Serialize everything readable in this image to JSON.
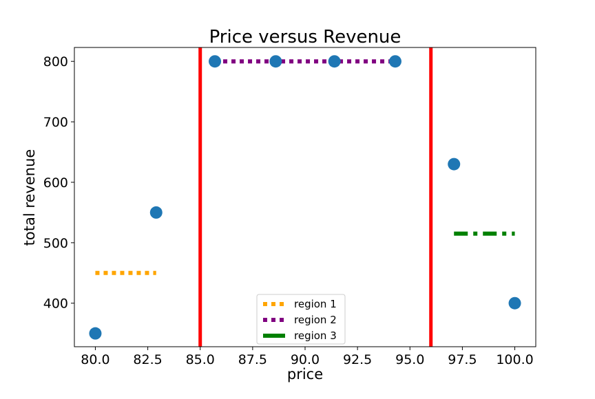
{
  "chart_data": {
    "type": "scatter",
    "title": "Price versus Revenue",
    "xlabel": "price",
    "ylabel": "total revenue",
    "xlim": [
      79.0,
      101.0
    ],
    "ylim": [
      328,
      823
    ],
    "x_ticks": [
      "80.0",
      "82.5",
      "85.0",
      "87.5",
      "90.0",
      "92.5",
      "95.0",
      "97.5",
      "100.0"
    ],
    "x_tick_values": [
      80.0,
      82.5,
      85.0,
      87.5,
      90.0,
      92.5,
      95.0,
      97.5,
      100.0
    ],
    "y_ticks": [
      "400",
      "500",
      "600",
      "700",
      "800"
    ],
    "y_tick_values": [
      400,
      500,
      600,
      700,
      800
    ],
    "grid": false,
    "legend_position": "lower-center",
    "points": {
      "color": "#1f77b4",
      "x": [
        80.0,
        82.9,
        85.7,
        88.6,
        91.4,
        94.3,
        97.1,
        100.0
      ],
      "y": [
        350,
        550,
        800,
        800,
        800,
        800,
        630,
        400
      ]
    },
    "vlines": [
      {
        "x": 85.0,
        "color": "#ff0000"
      },
      {
        "x": 96.0,
        "color": "#ff0000"
      }
    ],
    "series": [
      {
        "name": "region 1",
        "color": "#ffa500",
        "style": "dotted",
        "x": [
          80.0,
          82.9
        ],
        "y": [
          450,
          450
        ]
      },
      {
        "name": "region 2",
        "color": "#800080",
        "style": "dotted",
        "x": [
          85.7,
          94.3
        ],
        "y": [
          800,
          800
        ]
      },
      {
        "name": "region 3",
        "color": "#008000",
        "style": "dashdot",
        "x": [
          97.1,
          100.0
        ],
        "y": [
          515,
          515
        ]
      }
    ]
  }
}
